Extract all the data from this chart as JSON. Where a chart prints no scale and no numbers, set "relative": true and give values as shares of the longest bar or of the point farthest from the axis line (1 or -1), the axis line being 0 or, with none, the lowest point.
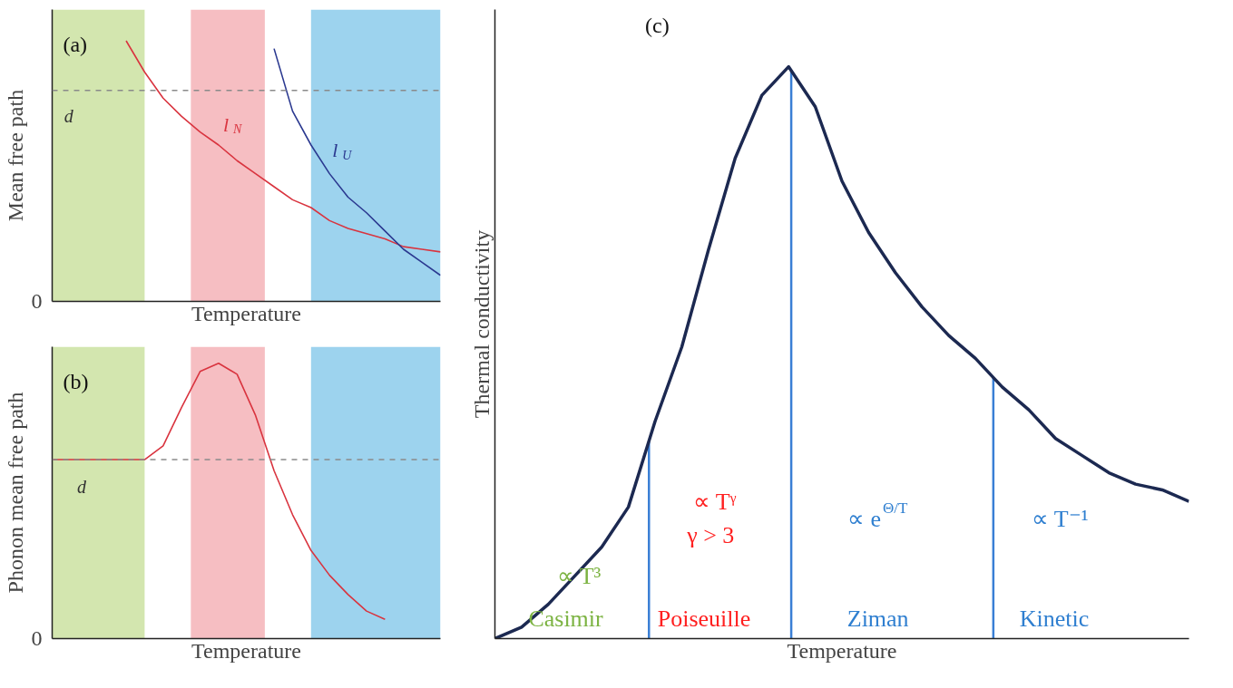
{
  "chart_data": [
    {
      "type": "line",
      "title": "(a)",
      "xlabel": "Temperature",
      "ylabel": "Mean free path",
      "relative": true,
      "categories": [
        null,
        null,
        null,
        null,
        null,
        null,
        null,
        null,
        null,
        null,
        null,
        null,
        null,
        null,
        null,
        null,
        null,
        null,
        null,
        null,
        null,
        null
      ],
      "series": [
        {
          "name": "l$_{N}$",
          "color": "#d9343f",
          "values": [
            null,
            null,
            null,
            null,
            1.0,
            0.88,
            0.78,
            0.71,
            0.65,
            0.6,
            0.54,
            0.49,
            0.44,
            0.39,
            0.36,
            0.31,
            0.28,
            0.26,
            0.24,
            0.21,
            0.2,
            0.19
          ]
        },
        {
          "name": "l$_{U}$",
          "color": "#2b3990",
          "values": [
            null,
            null,
            null,
            null,
            null,
            null,
            null,
            null,
            null,
            null,
            null,
            null,
            0.97,
            0.73,
            0.6,
            0.49,
            0.4,
            0.34,
            0.27,
            0.2,
            0.15,
            0.1
          ]
        }
      ],
      "ref_lines": [
        {
          "axis": "y",
          "value": 0.81,
          "label": "d",
          "color": "#8a8a8a",
          "line_style": "dashed"
        }
      ],
      "annotations": [
        "0"
      ]
    },
    {
      "type": "line",
      "title": "(b)",
      "xlabel": "Temperature",
      "ylabel": "Phonon mean free path",
      "relative": true,
      "categories": [
        null,
        null,
        null,
        null,
        null,
        null,
        null,
        null,
        null,
        null,
        null,
        null,
        null,
        null,
        null,
        null,
        null,
        null,
        null,
        null,
        null,
        null
      ],
      "series": [
        {
          "color": "#d9343f",
          "values": [
            0.65,
            0.65,
            0.65,
            0.65,
            0.65,
            0.65,
            0.7,
            0.84,
            0.97,
            1.0,
            0.96,
            0.81,
            0.61,
            0.45,
            0.32,
            0.23,
            0.16,
            0.1,
            0.07,
            null,
            null,
            null
          ]
        }
      ],
      "ref_lines": [
        {
          "axis": "y",
          "value": 0.65,
          "label": "d",
          "color": "#8a8a8a",
          "line_style": "dashed"
        }
      ],
      "annotations": [
        "0"
      ]
    },
    {
      "type": "line",
      "title": "(c)",
      "xlabel": "Temperature",
      "ylabel": "Thermal conductivity",
      "relative": true,
      "categories": [
        null,
        null,
        null,
        null,
        null,
        null,
        null,
        null,
        null,
        null,
        null,
        null,
        null,
        null,
        null,
        null,
        null,
        null,
        null,
        null,
        null,
        null,
        null,
        null,
        null,
        null,
        null
      ],
      "series": [
        {
          "color": "#1c2951",
          "values": [
            0,
            0.02,
            0.06,
            0.11,
            0.16,
            0.23,
            0.38,
            0.51,
            0.68,
            0.84,
            0.95,
            1.0,
            0.93,
            0.8,
            0.71,
            0.64,
            0.58,
            0.53,
            0.49,
            0.44,
            0.4,
            0.35,
            0.32,
            0.29,
            0.27,
            0.26,
            0.24
          ]
        }
      ],
      "annotations": [
        "∝ T³",
        "Casimir",
        "∝ Tᵞ",
        "γ > 3",
        "Poiseuille",
        "∝ e$^{Θ/T}$",
        "Ziman",
        "∝ T⁻¹",
        "Kinetic"
      ]
    }
  ]
}
